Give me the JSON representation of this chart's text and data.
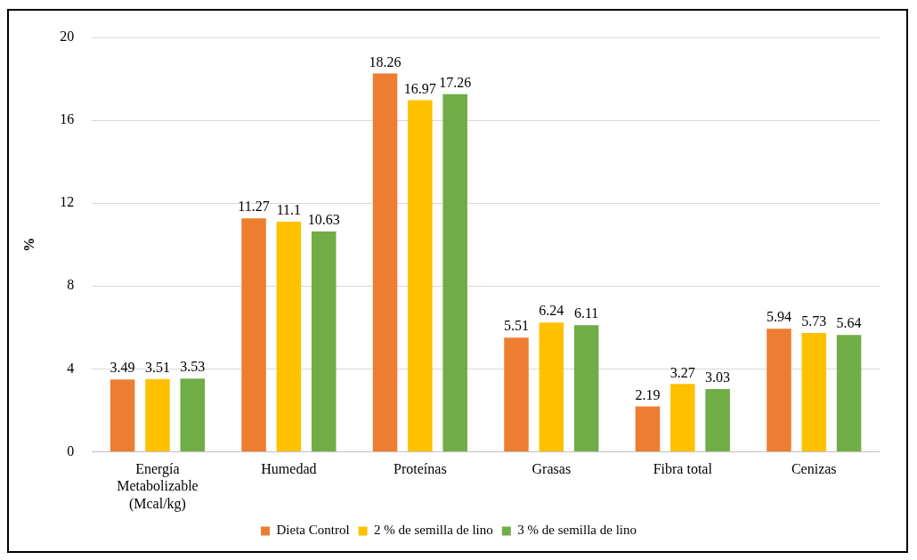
{
  "chart_data": {
    "type": "bar",
    "ylabel": "%",
    "categories": [
      "Energía Metabolizable (Mcal/kg)",
      "Humedad",
      "Proteínas",
      "Grasas",
      "Fibra total",
      "Cenizas"
    ],
    "series": [
      {
        "name": "Dieta Control",
        "color": "#ed7d31",
        "values": [
          3.49,
          11.27,
          18.26,
          5.51,
          2.19,
          5.94
        ]
      },
      {
        "name": "2 % de semilla de lino",
        "color": "#ffc000",
        "values": [
          3.51,
          11.1,
          16.97,
          6.24,
          3.27,
          5.73
        ]
      },
      {
        "name": "3 % de semilla de lino",
        "color": "#70ad47",
        "values": [
          3.53,
          10.63,
          17.26,
          6.11,
          3.03,
          5.64
        ]
      }
    ],
    "ylim": [
      0,
      20
    ],
    "yticks": [
      0,
      4,
      8,
      12,
      16,
      20
    ],
    "grid": "y",
    "legend": "bottom",
    "data_labels": true
  }
}
